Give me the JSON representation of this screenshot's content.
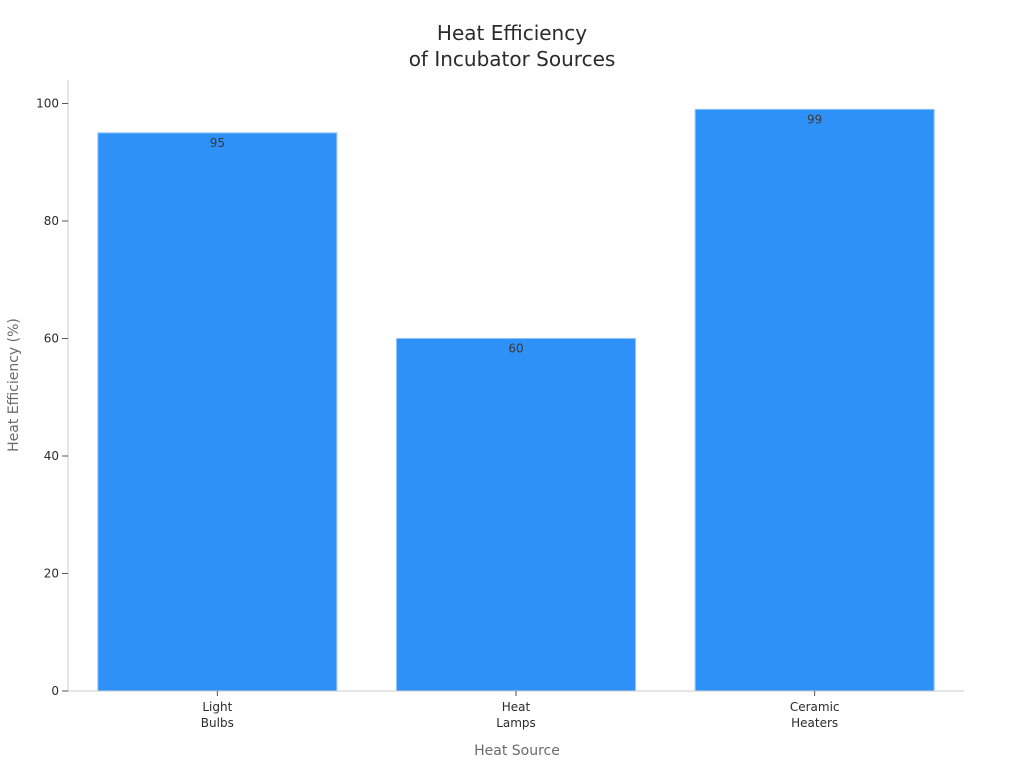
{
  "chart_data": {
    "type": "bar",
    "title_lines": [
      "Heat Efficiency",
      "of Incubator Sources"
    ],
    "xlabel": "Heat Source",
    "ylabel": "Heat Efficiency (%)",
    "categories": [
      [
        "Light",
        "Bulbs"
      ],
      [
        "Heat",
        "Lamps"
      ],
      [
        "Ceramic",
        "Heaters"
      ]
    ],
    "values": [
      95,
      60,
      99
    ],
    "data_labels": [
      "95",
      "60",
      "99"
    ],
    "ylim": [
      0,
      104
    ],
    "yticks": [
      0,
      20,
      40,
      60,
      80,
      100
    ],
    "grid": false,
    "legend": "none",
    "colors": {
      "bar": "#2e91f8",
      "bar_edge": "#8cc3fb",
      "axis": "#cccccc",
      "text": "#2b2b2b",
      "axis_label": "#6b6b6b"
    }
  }
}
